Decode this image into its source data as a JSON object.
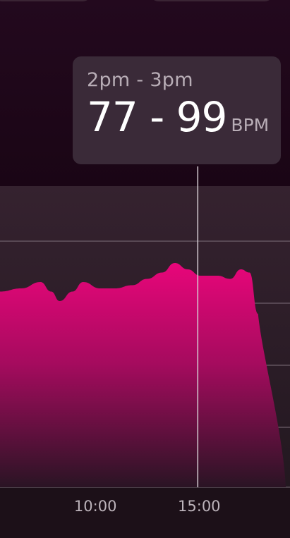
{
  "tooltip": {
    "time_range": "2pm - 3pm",
    "value_range": "77 - 99",
    "unit": "BPM"
  },
  "chart_data": {
    "type": "area",
    "title": "",
    "xlabel": "",
    "ylabel": "",
    "x_tick_labels": [
      "10:00",
      "15:00"
    ],
    "x_ticks_hours": [
      10,
      15
    ],
    "xlim_hours": [
      4.6,
      18.2
    ],
    "series": [
      {
        "values": [
          {
            "x": 4.6,
            "y": 97
          },
          {
            "x": 5.6,
            "y": 98
          },
          {
            "x": 6.5,
            "y": 100
          },
          {
            "x": 7.0,
            "y": 97
          },
          {
            "x": 7.4,
            "y": 94
          },
          {
            "x": 8.0,
            "y": 97
          },
          {
            "x": 8.5,
            "y": 100
          },
          {
            "x": 9.3,
            "y": 98
          },
          {
            "x": 10.0,
            "y": 98
          },
          {
            "x": 10.8,
            "y": 99
          },
          {
            "x": 11.5,
            "y": 101
          },
          {
            "x": 12.2,
            "y": 103
          },
          {
            "x": 12.8,
            "y": 106
          },
          {
            "x": 13.4,
            "y": 104
          },
          {
            "x": 14.0,
            "y": 102
          },
          {
            "x": 14.8,
            "y": 102
          },
          {
            "x": 15.4,
            "y": 101
          },
          {
            "x": 15.9,
            "y": 104
          },
          {
            "x": 16.3,
            "y": 103
          },
          {
            "x": 16.7,
            "y": 90
          }
        ]
      }
    ],
    "selected_range_hours": [
      14,
      15
    ],
    "grid": true,
    "colors": {
      "area_top": "#e8067a",
      "area_bottom": "#3a1230",
      "grid": "#7d6f7a",
      "cursor": "#d5cdd3"
    }
  }
}
